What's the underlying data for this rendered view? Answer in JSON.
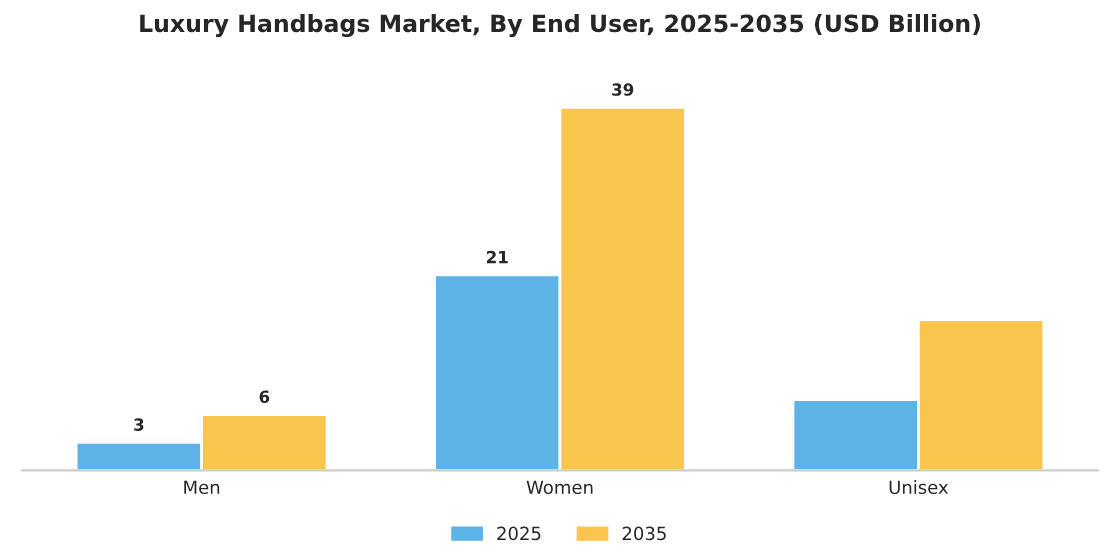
{
  "chart_data": {
    "type": "bar",
    "title": "Luxury Handbags Market, By End User, 2025-2035 (USD Billion)",
    "categories": [
      "Men",
      "Women",
      "Unisex"
    ],
    "series": [
      {
        "name": "2025",
        "color": "#5db3e6",
        "values": [
          3,
          21,
          7.6
        ],
        "value_labels": [
          "3",
          "21",
          null
        ]
      },
      {
        "name": "2035",
        "color": "#f9c54c",
        "values": [
          6,
          39,
          16.2
        ],
        "value_labels": [
          "6",
          "39",
          null
        ]
      }
    ],
    "legend": "bottom",
    "grid": false,
    "tick_labels": "x"
  }
}
